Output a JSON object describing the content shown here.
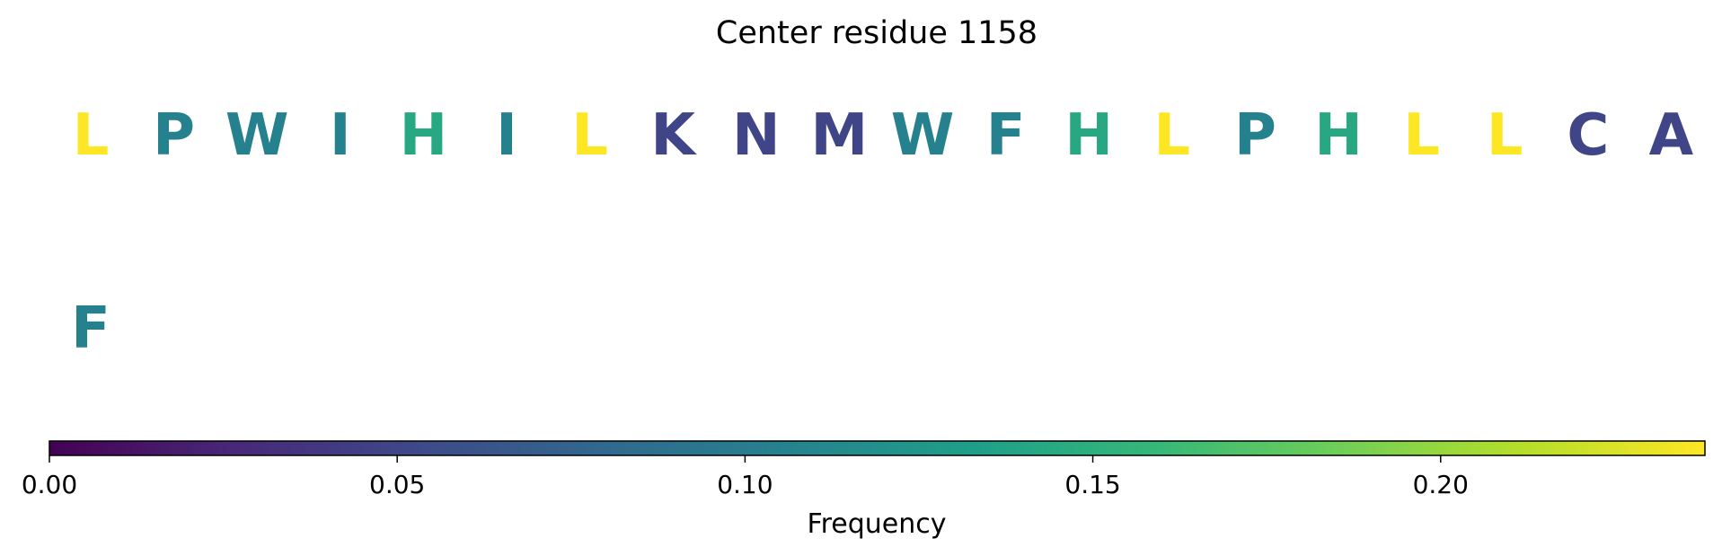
{
  "chart_data": {
    "type": "sequence-logo",
    "title": "Center residue 1158",
    "rows": [
      {
        "residues": [
          {
            "letter": "L",
            "value": 0.24
          },
          {
            "letter": "P",
            "value": 0.105
          },
          {
            "letter": "W",
            "value": 0.105
          },
          {
            "letter": "I",
            "value": 0.105
          },
          {
            "letter": "H",
            "value": 0.143
          },
          {
            "letter": "I",
            "value": 0.105
          },
          {
            "letter": "L",
            "value": 0.24
          },
          {
            "letter": "K",
            "value": 0.05
          },
          {
            "letter": "N",
            "value": 0.05
          },
          {
            "letter": "M",
            "value": 0.05
          },
          {
            "letter": "W",
            "value": 0.105
          },
          {
            "letter": "F",
            "value": 0.105
          },
          {
            "letter": "H",
            "value": 0.143
          },
          {
            "letter": "L",
            "value": 0.24
          },
          {
            "letter": "P",
            "value": 0.105
          },
          {
            "letter": "H",
            "value": 0.143
          },
          {
            "letter": "L",
            "value": 0.24
          },
          {
            "letter": "L",
            "value": 0.24
          },
          {
            "letter": "C",
            "value": 0.05
          },
          {
            "letter": "A",
            "value": 0.05
          }
        ]
      },
      {
        "residues": [
          {
            "letter": "F",
            "value": 0.105
          }
        ]
      }
    ],
    "colorbar": {
      "colormap": "viridis",
      "min": 0.0,
      "max": 0.238,
      "ticks": [
        0.0,
        0.05,
        0.1,
        0.15,
        0.2
      ],
      "tick_labels": [
        "0.00",
        "0.05",
        "0.10",
        "0.15",
        "0.20"
      ],
      "label": "Frequency"
    }
  }
}
